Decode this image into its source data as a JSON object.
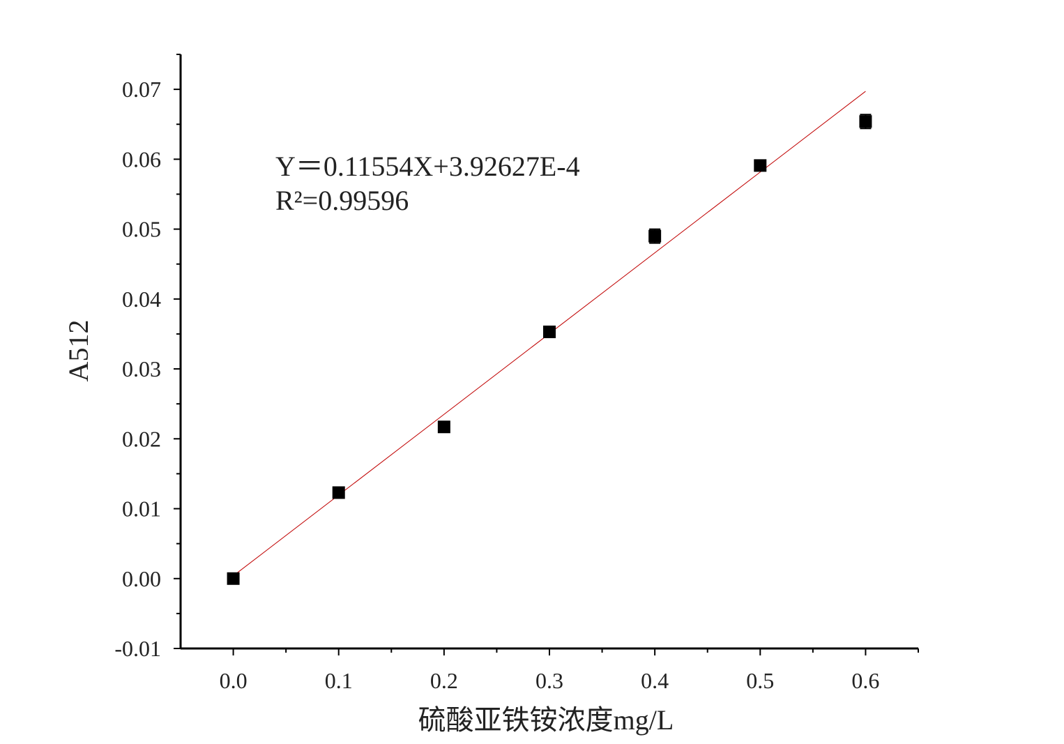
{
  "chart_data": {
    "type": "scatter",
    "x_label": "硫酸亚铁铵浓度mg/L",
    "y_label": "A512",
    "x": [
      0,
      0.1,
      0.2,
      0.3,
      0.4,
      0.5,
      0.6
    ],
    "values": [
      0.0,
      0.0123,
      0.0217,
      0.0353,
      0.049,
      0.0591,
      0.0654
    ],
    "errors": [
      0.0002,
      0.0003,
      0.0004,
      0.0003,
      0.001,
      0.0004,
      0.001
    ],
    "color": "#000000",
    "fit": {
      "slope": 0.11554,
      "intercept": 0.000392627,
      "x_range": [
        0,
        0.6
      ],
      "color": "#c00000"
    },
    "annotations": [
      "Y＝0.11554X+3.92627E-4",
      "R²=0.99596"
    ],
    "xlim": [
      -0.05,
      0.65
    ],
    "ylim": [
      -0.01,
      0.075
    ],
    "xticks": [
      {
        "value": 0,
        "label": "0.0"
      },
      0.1,
      0.2,
      0.3,
      0.4,
      0.5,
      0.6
    ],
    "yticks": [
      -0.01,
      {
        "value": 0,
        "label": "0.00"
      },
      0.01,
      0.02,
      0.03,
      0.04,
      0.05,
      0.06,
      0.07
    ],
    "xminorticks": [
      0.05,
      0.15,
      0.25,
      0.35,
      0.45,
      0.55,
      0.65
    ],
    "yminorticks": [
      -0.005,
      0.005,
      0.015,
      0.025,
      0.035,
      0.045,
      0.055,
      0.065,
      0.075
    ],
    "grid": false
  }
}
